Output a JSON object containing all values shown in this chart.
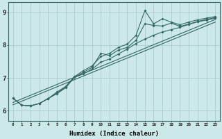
{
  "xlabel": "Humidex (Indice chaleur)",
  "ylabel": "",
  "bg_color": "#cce8e8",
  "grid_color": "#aacccc",
  "line_color": "#336666",
  "xlim": [
    -0.5,
    23.5
  ],
  "ylim": [
    5.7,
    9.3
  ],
  "yticks": [
    6,
    7,
    8,
    9
  ],
  "xticks": [
    0,
    1,
    2,
    3,
    4,
    5,
    6,
    7,
    8,
    9,
    10,
    11,
    12,
    13,
    14,
    15,
    16,
    17,
    18,
    19,
    20,
    21,
    22,
    23
  ],
  "series1_x": [
    0,
    1,
    2,
    3,
    4,
    5,
    6,
    7,
    8,
    9,
    10,
    11,
    12,
    13,
    14,
    15,
    16,
    17,
    18,
    19,
    20,
    21,
    22,
    23
  ],
  "series1_y": [
    6.38,
    6.17,
    6.15,
    6.22,
    6.37,
    6.52,
    6.7,
    7.02,
    7.12,
    7.27,
    7.48,
    7.58,
    7.73,
    7.88,
    8.05,
    8.18,
    8.3,
    8.4,
    8.47,
    8.54,
    8.63,
    8.71,
    8.76,
    8.82
  ],
  "series2_x": [
    0,
    1,
    2,
    3,
    4,
    5,
    6,
    7,
    8,
    9,
    10,
    11,
    12,
    13,
    14,
    15,
    16,
    17,
    18,
    19,
    20,
    21,
    22,
    23
  ],
  "series2_y": [
    6.38,
    6.17,
    6.15,
    6.22,
    6.37,
    6.54,
    6.72,
    7.02,
    7.17,
    7.32,
    7.75,
    7.68,
    7.85,
    7.93,
    8.15,
    8.65,
    8.6,
    8.58,
    8.67,
    8.57,
    8.64,
    8.72,
    8.78,
    8.84
  ],
  "series3_x": [
    0,
    1,
    2,
    3,
    4,
    5,
    6,
    7,
    8,
    9,
    10,
    11,
    12,
    13,
    14,
    15,
    16,
    17,
    18,
    19,
    20,
    21,
    22,
    23
  ],
  "series3_y": [
    6.38,
    6.17,
    6.15,
    6.22,
    6.37,
    6.57,
    6.74,
    7.04,
    7.22,
    7.37,
    7.65,
    7.75,
    7.93,
    8.03,
    8.3,
    9.05,
    8.65,
    8.8,
    8.7,
    8.62,
    8.7,
    8.77,
    8.82,
    8.87
  ],
  "fit1_x": [
    0,
    23
  ],
  "fit1_y": [
    6.25,
    8.78
  ],
  "fit2_x": [
    0,
    23
  ],
  "fit2_y": [
    6.18,
    8.7
  ]
}
